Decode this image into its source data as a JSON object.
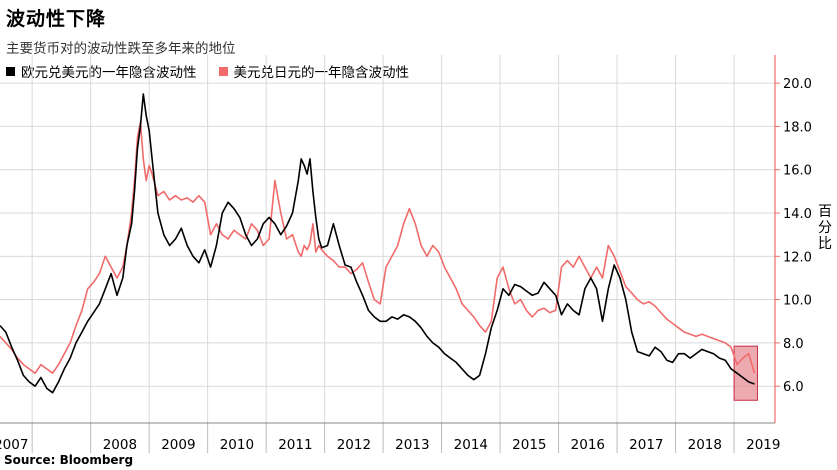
{
  "title": "波动性下降",
  "subtitle": "主要货币对的波动性跌至多年来的地位",
  "unit_label": "百分比",
  "source": "Source: Bloomberg",
  "colors": {
    "eurusd": "#000000",
    "usdjpy": "#f26b6b",
    "highlight_fill": "#e88d97",
    "highlight_stroke": "#c62d41",
    "axis": "#f26b6b",
    "grid": "#d9d9d9"
  },
  "chart_data": {
    "type": "line",
    "title": "波动性下降",
    "subtitle": "主要货币对的波动性跌至多年来的地位",
    "ylabel": "百分比",
    "ylim": [
      4.3,
      21.3
    ],
    "xlim": [
      2006.45,
      2019.7
    ],
    "y_ticks": [
      "6.0",
      "8.0",
      "10.0",
      "12.0",
      "14.0",
      "16.0",
      "18.0",
      "20.0"
    ],
    "x_ticks": [
      "2007",
      "2008",
      "2009",
      "2010",
      "2011",
      "2012",
      "2013",
      "2014",
      "2015",
      "2016",
      "2017",
      "2018",
      "2019"
    ],
    "grid": true,
    "legend_position": "top-left",
    "highlight": {
      "x0": 2019.0,
      "x1": 2019.4,
      "y0": 5.35,
      "y1": 7.85
    },
    "series": [
      {
        "name": "欧元兑美元的一年隐含波动性",
        "color": "#000000",
        "x": [
          2006.45,
          2006.55,
          2006.65,
          2006.75,
          2006.85,
          2006.95,
          2007.05,
          2007.15,
          2007.25,
          2007.35,
          2007.45,
          2007.55,
          2007.65,
          2007.75,
          2007.85,
          2007.95,
          2008.05,
          2008.15,
          2008.25,
          2008.35,
          2008.45,
          2008.55,
          2008.62,
          2008.7,
          2008.75,
          2008.8,
          2008.85,
          2008.9,
          2008.95,
          2009.0,
          2009.05,
          2009.15,
          2009.25,
          2009.35,
          2009.45,
          2009.55,
          2009.65,
          2009.75,
          2009.85,
          2009.95,
          2010.05,
          2010.15,
          2010.25,
          2010.35,
          2010.45,
          2010.55,
          2010.65,
          2010.75,
          2010.85,
          2010.95,
          2011.05,
          2011.15,
          2011.25,
          2011.35,
          2011.45,
          2011.55,
          2011.6,
          2011.65,
          2011.7,
          2011.75,
          2011.8,
          2011.85,
          2011.9,
          2011.95,
          2012.05,
          2012.15,
          2012.25,
          2012.35,
          2012.45,
          2012.55,
          2012.65,
          2012.75,
          2012.85,
          2012.95,
          2013.05,
          2013.15,
          2013.25,
          2013.35,
          2013.45,
          2013.55,
          2013.65,
          2013.75,
          2013.85,
          2013.95,
          2014.05,
          2014.15,
          2014.25,
          2014.35,
          2014.45,
          2014.55,
          2014.65,
          2014.75,
          2014.85,
          2014.95,
          2015.05,
          2015.15,
          2015.25,
          2015.35,
          2015.45,
          2015.55,
          2015.65,
          2015.75,
          2015.85,
          2015.95,
          2016.05,
          2016.15,
          2016.25,
          2016.35,
          2016.45,
          2016.55,
          2016.65,
          2016.75,
          2016.85,
          2016.95,
          2017.05,
          2017.15,
          2017.25,
          2017.35,
          2017.45,
          2017.55,
          2017.65,
          2017.75,
          2017.85,
          2017.95,
          2018.05,
          2018.15,
          2018.25,
          2018.35,
          2018.45,
          2018.55,
          2018.65,
          2018.75,
          2018.85,
          2018.95,
          2019.05,
          2019.15,
          2019.25,
          2019.35
        ],
        "values": [
          8.8,
          8.5,
          7.8,
          7.2,
          6.5,
          6.2,
          6.0,
          6.4,
          5.9,
          5.7,
          6.2,
          6.8,
          7.3,
          8.0,
          8.5,
          9.0,
          9.4,
          9.8,
          10.5,
          11.2,
          10.2,
          11.0,
          12.5,
          13.5,
          15.0,
          17.0,
          18.0,
          19.5,
          18.5,
          17.8,
          16.5,
          14.0,
          13.0,
          12.5,
          12.8,
          13.3,
          12.5,
          12.0,
          11.7,
          12.3,
          11.5,
          12.5,
          14.0,
          14.5,
          14.2,
          13.8,
          13.0,
          12.5,
          12.8,
          13.5,
          13.8,
          13.5,
          13.0,
          13.4,
          14.0,
          15.5,
          16.5,
          16.2,
          15.8,
          16.5,
          15.0,
          13.8,
          12.8,
          12.4,
          12.5,
          13.5,
          12.5,
          11.6,
          11.5,
          10.8,
          10.2,
          9.5,
          9.2,
          9.0,
          9.0,
          9.2,
          9.1,
          9.3,
          9.2,
          9.0,
          8.7,
          8.3,
          8.0,
          7.8,
          7.5,
          7.3,
          7.1,
          6.8,
          6.5,
          6.3,
          6.5,
          7.5,
          8.7,
          9.5,
          10.5,
          10.2,
          10.7,
          10.6,
          10.4,
          10.2,
          10.3,
          10.8,
          10.5,
          10.2,
          9.3,
          9.8,
          9.5,
          9.3,
          10.5,
          11.0,
          10.5,
          9.0,
          10.5,
          11.6,
          11.0,
          10.0,
          8.5,
          7.6,
          7.5,
          7.4,
          7.8,
          7.6,
          7.2,
          7.1,
          7.5,
          7.5,
          7.3,
          7.5,
          7.7,
          7.6,
          7.5,
          7.3,
          7.2,
          6.8,
          6.6,
          6.4,
          6.2,
          6.1
        ]
      },
      {
        "name": "美元兑日元的一年隐含波动性",
        "color": "#f26b6b",
        "x": [
          2006.45,
          2006.55,
          2006.65,
          2006.75,
          2006.85,
          2006.95,
          2007.05,
          2007.15,
          2007.25,
          2007.35,
          2007.45,
          2007.55,
          2007.65,
          2007.75,
          2007.85,
          2007.95,
          2008.05,
          2008.15,
          2008.25,
          2008.35,
          2008.45,
          2008.55,
          2008.62,
          2008.7,
          2008.75,
          2008.8,
          2008.85,
          2008.9,
          2008.95,
          2009.0,
          2009.05,
          2009.15,
          2009.25,
          2009.35,
          2009.45,
          2009.55,
          2009.65,
          2009.75,
          2009.85,
          2009.95,
          2010.05,
          2010.15,
          2010.25,
          2010.35,
          2010.45,
          2010.55,
          2010.65,
          2010.75,
          2010.85,
          2010.95,
          2011.05,
          2011.15,
          2011.25,
          2011.35,
          2011.45,
          2011.55,
          2011.6,
          2011.65,
          2011.7,
          2011.75,
          2011.8,
          2011.85,
          2011.9,
          2011.95,
          2012.05,
          2012.15,
          2012.25,
          2012.35,
          2012.45,
          2012.55,
          2012.65,
          2012.75,
          2012.85,
          2012.95,
          2013.05,
          2013.15,
          2013.25,
          2013.35,
          2013.45,
          2013.55,
          2013.65,
          2013.75,
          2013.85,
          2013.95,
          2014.05,
          2014.15,
          2014.25,
          2014.35,
          2014.45,
          2014.55,
          2014.65,
          2014.75,
          2014.85,
          2014.95,
          2015.05,
          2015.15,
          2015.25,
          2015.35,
          2015.45,
          2015.55,
          2015.65,
          2015.75,
          2015.85,
          2015.95,
          2016.05,
          2016.15,
          2016.25,
          2016.35,
          2016.45,
          2016.55,
          2016.65,
          2016.75,
          2016.85,
          2016.95,
          2017.05,
          2017.15,
          2017.25,
          2017.35,
          2017.45,
          2017.55,
          2017.65,
          2017.75,
          2017.85,
          2017.95,
          2018.05,
          2018.15,
          2018.25,
          2018.35,
          2018.45,
          2018.55,
          2018.65,
          2018.75,
          2018.85,
          2018.95,
          2019.05,
          2019.15,
          2019.25,
          2019.35
        ],
        "values": [
          8.3,
          8.0,
          7.7,
          7.3,
          7.0,
          6.8,
          6.6,
          7.0,
          6.8,
          6.6,
          7.0,
          7.5,
          8.0,
          8.8,
          9.5,
          10.5,
          10.8,
          11.2,
          12.0,
          11.5,
          11.0,
          11.5,
          12.5,
          14.0,
          15.5,
          17.5,
          18.2,
          16.5,
          15.5,
          16.2,
          15.8,
          14.8,
          15.0,
          14.6,
          14.8,
          14.6,
          14.7,
          14.5,
          14.8,
          14.5,
          13.0,
          13.5,
          13.0,
          12.8,
          13.2,
          13.0,
          12.8,
          13.5,
          13.2,
          12.5,
          12.8,
          15.5,
          14.0,
          12.8,
          13.0,
          12.2,
          12.0,
          12.5,
          12.3,
          12.6,
          13.5,
          12.2,
          12.5,
          12.3,
          12.0,
          11.8,
          11.5,
          11.5,
          11.2,
          11.4,
          11.7,
          10.8,
          10.0,
          9.8,
          11.5,
          12.0,
          12.5,
          13.5,
          14.2,
          13.5,
          12.5,
          12.0,
          12.5,
          12.2,
          11.5,
          11.0,
          10.5,
          9.8,
          9.5,
          9.2,
          8.8,
          8.5,
          9.0,
          11.0,
          11.5,
          10.5,
          9.8,
          10.0,
          9.5,
          9.2,
          9.5,
          9.6,
          9.4,
          9.5,
          11.5,
          11.8,
          11.5,
          12.0,
          11.5,
          11.0,
          11.5,
          11.0,
          12.5,
          12.0,
          11.3,
          10.6,
          10.3,
          10.0,
          9.8,
          9.9,
          9.7,
          9.4,
          9.1,
          8.9,
          8.7,
          8.5,
          8.4,
          8.3,
          8.4,
          8.3,
          8.2,
          8.1,
          8.0,
          7.8,
          7.0,
          7.3,
          7.5,
          6.6
        ]
      }
    ]
  }
}
